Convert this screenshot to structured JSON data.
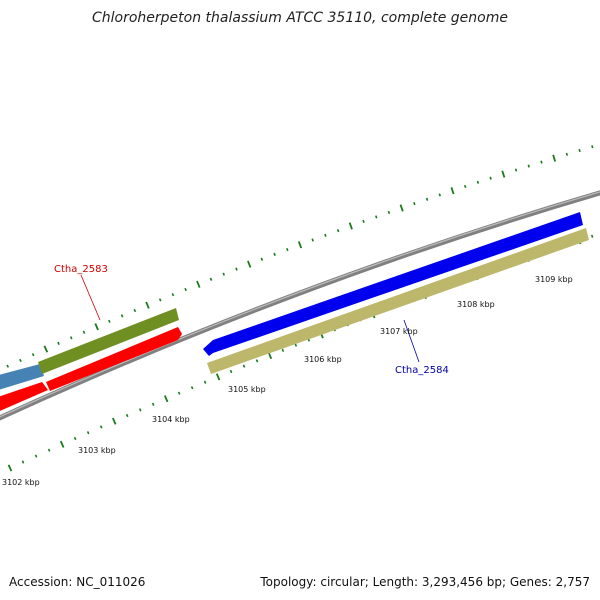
{
  "title": "Chloroherpeton thalassium ATCC 35110, complete genome",
  "footer": {
    "accession": "Accession: NC_011026",
    "summary": "Topology: circular; Length: 3,293,456 bp; Genes: 2,757"
  },
  "scale_labels": [
    "3102 kbp",
    "3103 kbp",
    "3104 kbp",
    "3105 kbp",
    "3106 kbp",
    "3107 kbp",
    "3108 kbp",
    "3109 kbp"
  ],
  "gene_labels": {
    "upper": "Ctha_2583",
    "lower": "Ctha_2584"
  },
  "colors": {
    "backbone": "#808080",
    "tick": "#1a7a1a",
    "gene_red": "#ff0000",
    "gene_blue": "#0000ee",
    "gene_olive": "#6f8f22",
    "gene_steel": "#4682b4",
    "gene_khaki": "#bdb76b",
    "label_red": "#cc0000",
    "label_blue": "#0000aa"
  }
}
